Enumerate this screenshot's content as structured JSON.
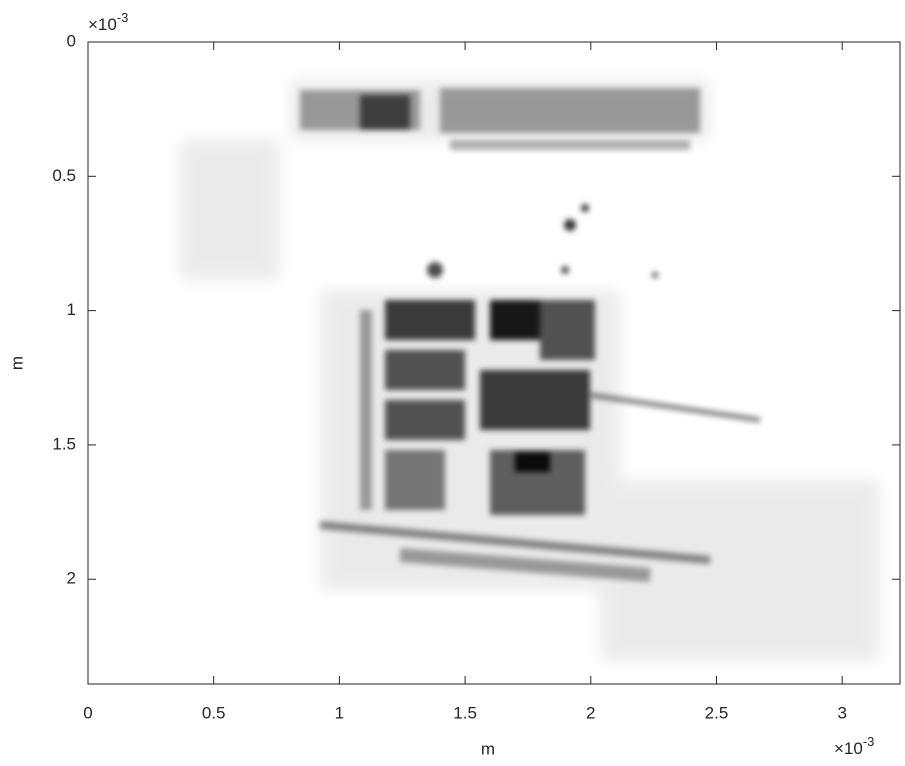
{
  "chart_data": {
    "type": "image",
    "xlabel": "m",
    "ylabel": "m",
    "x_multiplier": {
      "base": "×10",
      "exponent": "-3"
    },
    "y_multiplier": {
      "base": "×10",
      "exponent": "-3"
    },
    "xlim": [
      0,
      3.23
    ],
    "ylim": [
      0,
      2.39
    ],
    "y_reversed": true,
    "xticks": [
      0,
      0.5,
      1,
      1.5,
      2,
      2.5,
      3
    ],
    "yticks": [
      0,
      0.5,
      1,
      1.5,
      2
    ],
    "colormap": [
      "#ffffff",
      "#000000"
    ]
  }
}
